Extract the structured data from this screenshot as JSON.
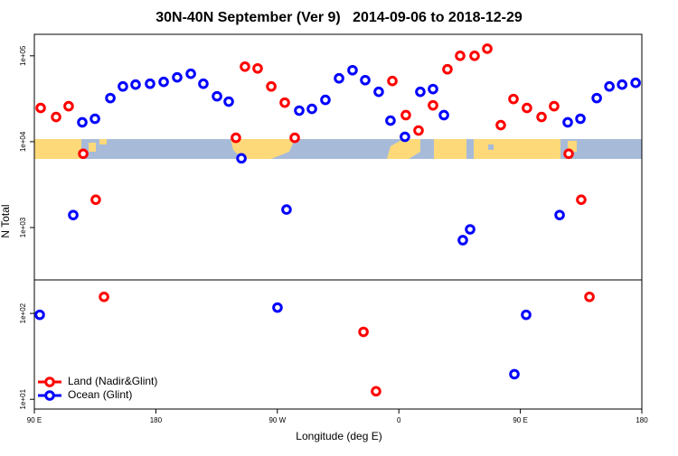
{
  "chart_data": {
    "type": "scatter",
    "title": "30N-40N September (Ver 9)   2014-09-06 to 2018-12-29",
    "x_label": "Longitude (deg E)",
    "y_label": "N Total",
    "xlim": [
      90,
      540
    ],
    "xticks": [
      {
        "value": 90,
        "label": "90 E"
      },
      180,
      {
        "value": 270,
        "label": "90 W"
      },
      {
        "value": 360,
        "label": "0"
      },
      {
        "value": 450,
        "label": "90 E"
      },
      {
        "value": 540,
        "label": "180"
      }
    ],
    "ylim": [
      7.7,
      178000
    ],
    "log_y": true,
    "yticks": [
      {
        "value": 10,
        "label": "1e+01"
      },
      {
        "value": 100,
        "label": "1e+02"
      },
      {
        "value": 1000,
        "label": "1e+03"
      },
      {
        "value": 10000,
        "label": "1e+04"
      },
      {
        "value": 100000,
        "label": "1e+05"
      }
    ],
    "legend": "bottom left",
    "series": [
      {
        "name": "Land (Nadir&Glint)",
        "color": "#ff0000",
        "x": [
          94.7,
          106.1,
          115.4,
          126.2,
          135.5,
          141.6,
          239.3,
          246.0,
          255.4,
          265.5,
          275.5,
          282.9,
          333.8,
          343.1,
          355.2,
          365.2,
          374.6,
          385.3,
          396.0,
          405.4,
          416.1,
          425.5,
          435.5,
          444.9,
          454.9,
          465.7,
          475.0,
          485.8,
          495.1,
          501.2
        ],
        "values": [
          24700,
          19400,
          25900,
          7230,
          2110,
          156,
          11100,
          74800,
          71300,
          44000,
          28500,
          11100,
          61,
          12.4,
          50900,
          20400,
          13500,
          26500,
          69700,
          100000,
          100000,
          121000,
          15600,
          31400,
          24700,
          19400,
          25900,
          7230,
          2110,
          156
        ]
      },
      {
        "name": "Ocean (Glint)",
        "color": "#0000ff",
        "x": [
          94.0,
          118.8,
          125.5,
          134.9,
          146.3,
          155.6,
          165.0,
          175.7,
          185.8,
          195.8,
          205.9,
          215.2,
          225.3,
          234.0,
          243.4,
          270.1,
          276.8,
          286.2,
          295.6,
          305.6,
          315.7,
          325.7,
          335.1,
          345.1,
          353.8,
          364.5,
          375.9,
          385.3,
          393.4,
          407.4,
          412.8,
          445.6,
          454.3,
          479.1,
          485.1,
          494.5,
          506.6,
          516.0,
          525.4,
          535.4
        ],
        "values": [
          96.4,
          1400,
          16800,
          18500,
          32200,
          44000,
          46200,
          47300,
          49700,
          56100,
          61800,
          47300,
          33800,
          29300,
          6400,
          117,
          1620,
          23000,
          24100,
          30700,
          54700,
          68000,
          52100,
          38100,
          17600,
          11400,
          38100,
          41000,
          20400,
          713,
          953,
          19.6,
          96.4,
          1400,
          16800,
          18500,
          32200,
          44000,
          46200,
          48500
        ]
      }
    ]
  }
}
